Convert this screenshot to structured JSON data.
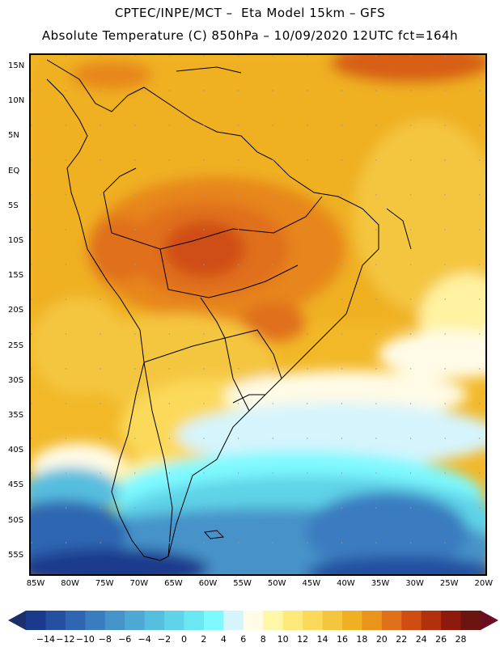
{
  "title_line1": "CPTEC/INPE/MCT –  Eta Model 15km – GFS",
  "title_line2": "Absolute Temperature (C) 850hPa – 10/09/2020 12UTC fct=164h",
  "lat_labels": [
    "15N",
    "10N",
    "5N",
    "EQ",
    "5S",
    "10S",
    "15S",
    "20S",
    "25S",
    "30S",
    "35S",
    "40S",
    "45S",
    "50S",
    "55S"
  ],
  "lon_labels": [
    "85W",
    "80W",
    "75W",
    "70W",
    "65W",
    "60W",
    "55W",
    "50W",
    "45W",
    "40W",
    "35W",
    "30W",
    "25W",
    "20W"
  ],
  "colorbar": {
    "tick_labels": [
      "−14",
      "−12",
      "−10",
      "−8",
      "−6",
      "−4",
      "−2",
      "0",
      "2",
      "4",
      "6",
      "8",
      "10",
      "12",
      "14",
      "16",
      "18",
      "20",
      "22",
      "24",
      "26",
      "28"
    ],
    "colors": [
      "#1a3b8c",
      "#24509f",
      "#2e66b1",
      "#3a7cc0",
      "#4693c9",
      "#4fa8d4",
      "#56bedf",
      "#5fd3e7",
      "#6ae7f0",
      "#7ef9ff",
      "#d5f4fc",
      "#fffbe6",
      "#fff7a8",
      "#ffe97a",
      "#fbd95a",
      "#f4c63f",
      "#efb024",
      "#ea941c",
      "#e0701a",
      "#cf4d12",
      "#b3300c",
      "#8e1a0e",
      "#6b1410"
    ],
    "low_arrow_color": "#1d2f6b",
    "high_arrow_color": "#6b0d20"
  }
}
